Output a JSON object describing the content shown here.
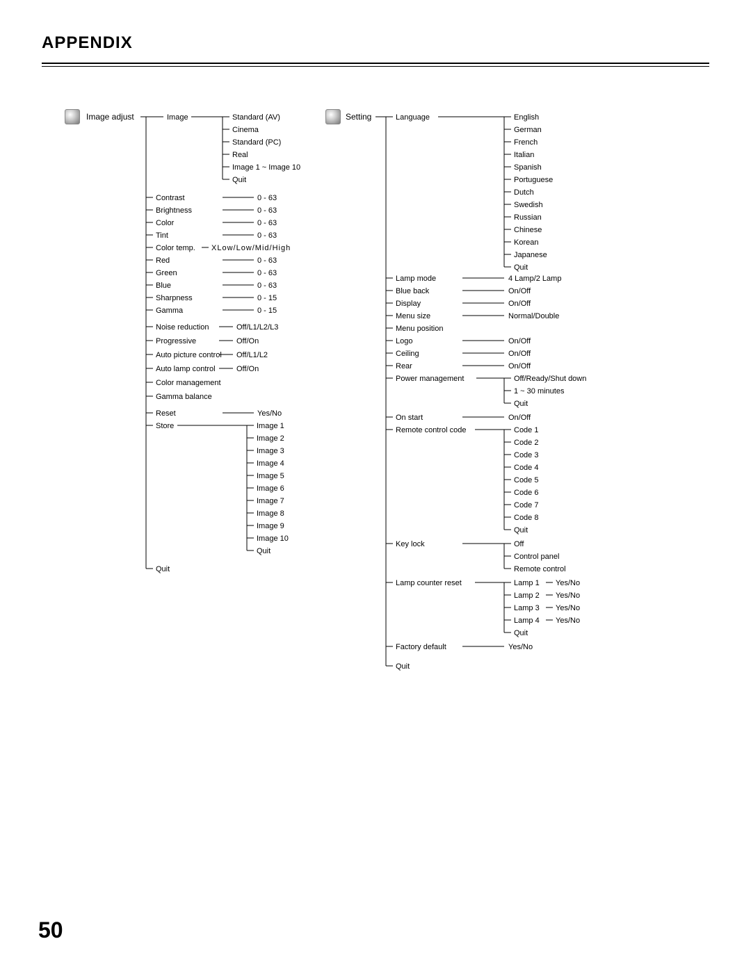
{
  "page": {
    "title": "APPENDIX",
    "number": "50"
  },
  "left": {
    "header": "Image adjust",
    "image": {
      "label": "Image",
      "options": [
        "Standard (AV)",
        "Cinema",
        "Standard (PC)",
        "Real",
        "Image 1 ~ Image 10",
        "Quit"
      ]
    },
    "params": [
      {
        "label": "Contrast",
        "val": "0 - 63"
      },
      {
        "label": "Brightness",
        "val": "0 - 63"
      },
      {
        "label": "Color",
        "val": "0 - 63"
      },
      {
        "label": "Tint",
        "val": "0 - 63"
      }
    ],
    "colortemp": {
      "label": "Color temp.",
      "val": "XLow/Low/Mid/High"
    },
    "rgb": [
      {
        "label": "Red",
        "val": "0 - 63"
      },
      {
        "label": "Green",
        "val": "0 - 63"
      },
      {
        "label": "Blue",
        "val": "0 - 63"
      },
      {
        "label": "Sharpness",
        "val": "0 - 15"
      },
      {
        "label": "Gamma",
        "val": "0 - 15"
      }
    ],
    "ctrl": [
      {
        "label": "Noise reduction",
        "val": "Off/L1/L2/L3"
      },
      {
        "label": "Progressive",
        "val": "Off/On"
      },
      {
        "label": "Auto picture control",
        "val": "Off/L1/L2"
      },
      {
        "label": "Auto lamp control",
        "val": "Off/On"
      },
      {
        "label": "Color management",
        "val": ""
      },
      {
        "label": "Gamma balance",
        "val": ""
      }
    ],
    "reset": {
      "label": "Reset",
      "val": "Yes/No"
    },
    "store": {
      "label": "Store",
      "options": [
        "Image 1",
        "Image 2",
        "Image 3",
        "Image 4",
        "Image 5",
        "Image 6",
        "Image 7",
        "Image 8",
        "Image 9",
        "Image 10",
        "Quit"
      ]
    },
    "quit": "Quit"
  },
  "right": {
    "header": "Setting",
    "language": {
      "label": "Language",
      "options": [
        "English",
        "German",
        "French",
        "Italian",
        "Spanish",
        "Portuguese",
        "Dutch",
        "Swedish",
        "Russian",
        "Chinese",
        "Korean",
        "Japanese",
        "Quit"
      ]
    },
    "group1": [
      {
        "label": "Lamp mode",
        "val": "4 Lamp/2 Lamp"
      },
      {
        "label": "Blue back",
        "val": "On/Off"
      },
      {
        "label": "Display",
        "val": "On/Off"
      },
      {
        "label": "Menu size",
        "val": "Normal/Double"
      },
      {
        "label": "Menu position",
        "val": ""
      },
      {
        "label": "Logo",
        "val": "On/Off"
      },
      {
        "label": "Ceiling",
        "val": "On/Off"
      },
      {
        "label": "Rear",
        "val": "On/Off"
      }
    ],
    "power": {
      "label": "Power management",
      "options": [
        "Off/Ready/Shut down",
        "1 ~ 30 minutes",
        "Quit"
      ]
    },
    "group2": [
      {
        "label": "On start",
        "val": "On/Off"
      }
    ],
    "remote": {
      "label": "Remote control code",
      "options": [
        "Code 1",
        "Code 2",
        "Code 3",
        "Code 4",
        "Code 5",
        "Code 6",
        "Code 7",
        "Code 8",
        "Quit"
      ]
    },
    "keylock": {
      "label": "Key lock",
      "options": [
        "Off",
        "Control panel",
        "Remote control"
      ]
    },
    "lampreset": {
      "label": "Lamp counter reset",
      "options": [
        {
          "label": "Lamp 1",
          "val": "Yes/No"
        },
        {
          "label": "Lamp 2",
          "val": "Yes/No"
        },
        {
          "label": "Lamp 3",
          "val": "Yes/No"
        },
        {
          "label": "Lamp 4",
          "val": "Yes/No"
        },
        {
          "label": "Quit",
          "val": ""
        }
      ]
    },
    "factory": {
      "label": "Factory default",
      "val": "Yes/No"
    },
    "quit": "Quit"
  }
}
